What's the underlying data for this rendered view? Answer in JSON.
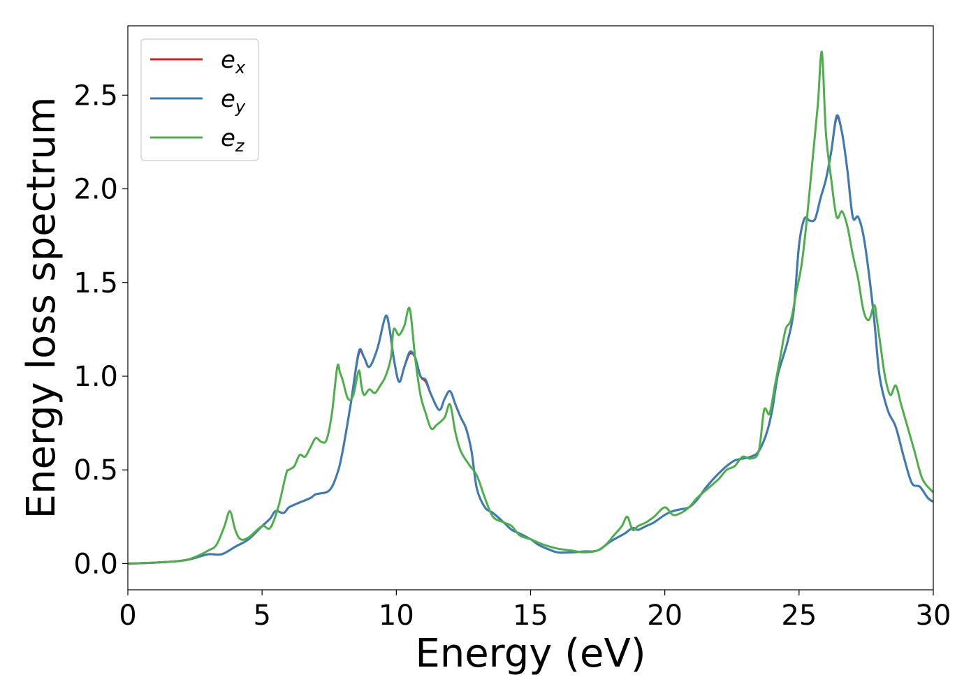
{
  "chart_data": {
    "type": "line",
    "xlabel": "Energy (eV)",
    "ylabel": "Energy loss spectrum",
    "xlim": [
      0,
      30
    ],
    "ylim": [
      -0.14,
      2.87
    ],
    "xticks": [
      "0",
      "5",
      "10",
      "15",
      "20",
      "25",
      "30"
    ],
    "yticks": [
      "0.0",
      "0.5",
      "1.0",
      "1.5",
      "2.0",
      "2.5"
    ],
    "grid": false,
    "legend_position": "top-left",
    "series": [
      {
        "name": "e_x",
        "label_main": "e",
        "label_sub": "x",
        "color": "#e41a1c",
        "x": [
          0,
          1,
          2,
          2.5,
          3,
          3.5,
          4,
          4.5,
          5,
          5.3,
          5.5,
          5.8,
          6,
          6.3,
          6.8,
          7,
          7.5,
          7.8,
          8,
          8.3,
          8.6,
          8.8,
          9,
          9.3,
          9.6,
          9.75,
          9.9,
          10.1,
          10.3,
          10.5,
          10.7,
          10.9,
          11.1,
          11.3,
          11.6,
          11.8,
          12,
          12.2,
          12.4,
          12.6,
          12.8,
          13,
          13.3,
          13.6,
          14,
          14.3,
          14.6,
          15,
          15.3,
          15.6,
          16,
          16.5,
          17,
          17.5,
          18,
          18.5,
          18.8,
          19,
          19.3,
          19.6,
          20,
          20.3,
          20.6,
          20.9,
          21.2,
          21.5,
          21.8,
          22,
          22.3,
          22.6,
          22.9,
          23.2,
          23.5,
          23.8,
          24,
          24.2,
          24.4,
          24.6,
          24.8,
          25,
          25.2,
          25.4,
          25.6,
          25.8,
          26,
          26.2,
          26.4,
          26.6,
          26.8,
          27,
          27.2,
          27.4,
          27.6,
          27.8,
          28,
          28.3,
          28.6,
          28.9,
          29.2,
          29.5,
          29.8,
          30
        ],
        "y": [
          0,
          0.005,
          0.015,
          0.03,
          0.05,
          0.05,
          0.09,
          0.13,
          0.2,
          0.24,
          0.28,
          0.27,
          0.3,
          0.32,
          0.35,
          0.37,
          0.39,
          0.48,
          0.6,
          0.85,
          1.12,
          1.1,
          1.05,
          1.15,
          1.32,
          1.25,
          1.1,
          0.97,
          1.05,
          1.12,
          1.1,
          1.0,
          0.97,
          0.9,
          0.82,
          0.88,
          0.92,
          0.85,
          0.78,
          0.72,
          0.6,
          0.4,
          0.3,
          0.27,
          0.22,
          0.18,
          0.16,
          0.13,
          0.1,
          0.08,
          0.06,
          0.06,
          0.065,
          0.07,
          0.12,
          0.16,
          0.19,
          0.18,
          0.2,
          0.22,
          0.26,
          0.28,
          0.29,
          0.3,
          0.34,
          0.4,
          0.45,
          0.48,
          0.52,
          0.55,
          0.56,
          0.57,
          0.6,
          0.7,
          0.82,
          1.0,
          1.1,
          1.2,
          1.35,
          1.7,
          1.84,
          1.83,
          1.84,
          1.95,
          2.05,
          2.2,
          2.38,
          2.3,
          2.1,
          1.85,
          1.85,
          1.75,
          1.55,
          1.3,
          1.0,
          0.82,
          0.73,
          0.57,
          0.43,
          0.41,
          0.35,
          0.33
        ]
      },
      {
        "name": "e_y",
        "label_main": "e",
        "label_sub": "y",
        "color": "#377eb8",
        "x": [
          0,
          1,
          2,
          2.5,
          3,
          3.5,
          4,
          4.5,
          5,
          5.3,
          5.5,
          5.8,
          6,
          6.3,
          6.8,
          7,
          7.5,
          7.8,
          8,
          8.3,
          8.6,
          8.8,
          9,
          9.3,
          9.6,
          9.75,
          9.9,
          10.1,
          10.3,
          10.5,
          10.7,
          10.9,
          11.1,
          11.3,
          11.6,
          11.8,
          12,
          12.2,
          12.4,
          12.6,
          12.8,
          13,
          13.3,
          13.6,
          14,
          14.3,
          14.6,
          15,
          15.3,
          15.6,
          16,
          16.5,
          17,
          17.5,
          18,
          18.5,
          18.8,
          19,
          19.3,
          19.6,
          20,
          20.3,
          20.6,
          20.9,
          21.2,
          21.5,
          21.8,
          22,
          22.3,
          22.6,
          22.9,
          23.2,
          23.5,
          23.8,
          24,
          24.2,
          24.4,
          24.6,
          24.8,
          25,
          25.2,
          25.4,
          25.6,
          25.8,
          26,
          26.2,
          26.4,
          26.6,
          26.8,
          27,
          27.2,
          27.4,
          27.6,
          27.8,
          28,
          28.3,
          28.6,
          28.9,
          29.2,
          29.5,
          29.8,
          30
        ],
        "y": [
          0,
          0.005,
          0.015,
          0.03,
          0.05,
          0.05,
          0.09,
          0.13,
          0.2,
          0.24,
          0.28,
          0.27,
          0.3,
          0.32,
          0.35,
          0.37,
          0.39,
          0.48,
          0.6,
          0.85,
          1.13,
          1.1,
          1.05,
          1.15,
          1.32,
          1.25,
          1.1,
          0.97,
          1.05,
          1.13,
          1.1,
          1.0,
          0.98,
          0.9,
          0.82,
          0.88,
          0.92,
          0.85,
          0.78,
          0.72,
          0.6,
          0.4,
          0.3,
          0.27,
          0.22,
          0.18,
          0.16,
          0.13,
          0.1,
          0.08,
          0.06,
          0.06,
          0.065,
          0.07,
          0.12,
          0.16,
          0.19,
          0.18,
          0.2,
          0.22,
          0.26,
          0.28,
          0.29,
          0.3,
          0.34,
          0.4,
          0.45,
          0.48,
          0.52,
          0.55,
          0.56,
          0.57,
          0.6,
          0.7,
          0.82,
          1.0,
          1.1,
          1.2,
          1.35,
          1.7,
          1.84,
          1.83,
          1.84,
          1.95,
          2.05,
          2.2,
          2.39,
          2.3,
          2.1,
          1.85,
          1.85,
          1.75,
          1.55,
          1.3,
          1.0,
          0.82,
          0.73,
          0.57,
          0.43,
          0.41,
          0.35,
          0.33
        ]
      },
      {
        "name": "e_z",
        "label_main": "e",
        "label_sub": "z",
        "color": "#4daf4a",
        "x": [
          0,
          1,
          2,
          2.5,
          3,
          3.3,
          3.6,
          3.8,
          4,
          4.2,
          4.5,
          5,
          5.3,
          5.6,
          5.9,
          6,
          6.2,
          6.4,
          6.6,
          6.8,
          7,
          7.2,
          7.4,
          7.6,
          7.8,
          7.9,
          8,
          8.2,
          8.4,
          8.6,
          8.7,
          8.8,
          9,
          9.2,
          9.4,
          9.6,
          9.8,
          9.9,
          10.1,
          10.3,
          10.5,
          10.7,
          10.9,
          11.1,
          11.3,
          11.5,
          11.8,
          12,
          12.2,
          12.4,
          12.7,
          13,
          13.3,
          13.6,
          14,
          14.3,
          14.6,
          15,
          15.5,
          16,
          16.5,
          17,
          17.5,
          17.8,
          18.1,
          18.4,
          18.6,
          18.8,
          19,
          19.3,
          19.6,
          20,
          20.3,
          20.6,
          20.9,
          21.2,
          21.6,
          22,
          22.3,
          22.6,
          22.9,
          23.2,
          23.5,
          23.7,
          23.9,
          24.1,
          24.3,
          24.5,
          24.7,
          24.9,
          25.1,
          25.3,
          25.5,
          25.7,
          25.85,
          26,
          26.2,
          26.4,
          26.6,
          26.8,
          27,
          27.2,
          27.4,
          27.6,
          27.8,
          27.9,
          28,
          28.2,
          28.4,
          28.6,
          28.8,
          29,
          29.3,
          29.6,
          30
        ],
        "y": [
          0,
          0.005,
          0.015,
          0.035,
          0.07,
          0.1,
          0.2,
          0.28,
          0.18,
          0.13,
          0.14,
          0.2,
          0.19,
          0.3,
          0.48,
          0.5,
          0.52,
          0.58,
          0.57,
          0.62,
          0.67,
          0.65,
          0.66,
          0.8,
          1.05,
          1.02,
          0.98,
          0.88,
          0.9,
          1.03,
          0.95,
          0.9,
          0.93,
          0.91,
          0.95,
          1.0,
          1.1,
          1.25,
          1.22,
          1.27,
          1.36,
          1.1,
          0.9,
          0.8,
          0.72,
          0.74,
          0.78,
          0.85,
          0.7,
          0.6,
          0.53,
          0.47,
          0.35,
          0.25,
          0.22,
          0.2,
          0.15,
          0.13,
          0.1,
          0.08,
          0.07,
          0.06,
          0.07,
          0.1,
          0.15,
          0.2,
          0.25,
          0.18,
          0.2,
          0.22,
          0.25,
          0.3,
          0.26,
          0.27,
          0.3,
          0.35,
          0.4,
          0.45,
          0.5,
          0.52,
          0.57,
          0.56,
          0.6,
          0.82,
          0.8,
          0.95,
          1.1,
          1.25,
          1.3,
          1.45,
          1.6,
          1.85,
          2.15,
          2.45,
          2.73,
          2.3,
          2.05,
          1.85,
          1.88,
          1.8,
          1.65,
          1.52,
          1.35,
          1.3,
          1.38,
          1.3,
          1.2,
          1.0,
          0.9,
          0.95,
          0.85,
          0.75,
          0.6,
          0.45,
          0.38
        ]
      }
    ]
  }
}
